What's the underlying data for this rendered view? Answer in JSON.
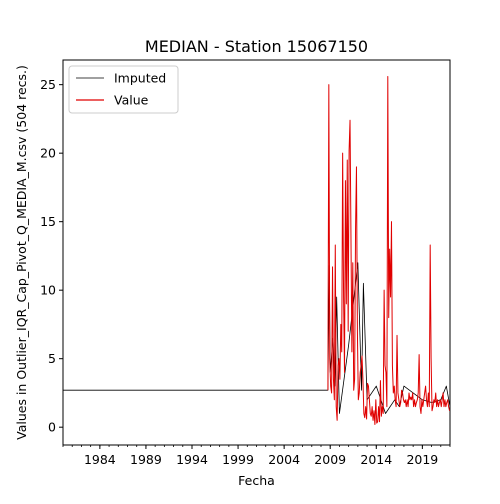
{
  "chart_data": {
    "type": "line",
    "title": "MEDIAN - Station 15067150",
    "xlabel": "Fecha",
    "ylabel": "Values in Outlier_IQR_Cap_Pivot_Q_MEDIA_M.csv (504 recs.)",
    "xlim": [
      1980.0,
      2022.0
    ],
    "ylim": [
      -1.3,
      26.8
    ],
    "x_ticks": [
      1984,
      1989,
      1994,
      1999,
      2004,
      2009,
      2014,
      2019
    ],
    "y_ticks": [
      0,
      5,
      10,
      15,
      20,
      25
    ],
    "grid": false,
    "legend_position": "upper-left",
    "series": [
      {
        "name": "Imputed",
        "color": "#000000",
        "x": [
          1980.0,
          1985.0,
          1990.0,
          1995.0,
          2000.0,
          2005.0,
          2008.5,
          2008.75,
          2008.9,
          2009.0,
          2009.3,
          2009.5,
          2009.7,
          2010.0,
          2011.0,
          2012.0,
          2012.4,
          2012.6,
          2013.0,
          2014.0,
          2015.0,
          2016.0,
          2016.5,
          2017.0,
          2018.0,
          2019.0,
          2020.0,
          2021.0,
          2021.6,
          2022.0
        ],
        "values": [
          2.7,
          2.7,
          2.7,
          2.7,
          2.7,
          2.7,
          2.7,
          2.7,
          11.8,
          4.0,
          6.5,
          3.0,
          9.5,
          1.0,
          6.0,
          12.0,
          2.7,
          10.5,
          2.0,
          3.0,
          1.0,
          2.0,
          1.5,
          3.0,
          2.5,
          2.0,
          1.8,
          2.0,
          3.0,
          1.5
        ]
      },
      {
        "name": "Value",
        "color": "#e00000",
        "x": [
          2008.75,
          2008.85,
          2008.95,
          2009.05,
          2009.15,
          2009.25,
          2009.35,
          2009.45,
          2009.55,
          2009.65,
          2009.75,
          2009.85,
          2009.95,
          2010.05,
          2010.15,
          2010.25,
          2010.35,
          2010.45,
          2010.55,
          2010.65,
          2010.75,
          2010.85,
          2010.95,
          2011.05,
          2011.15,
          2011.25,
          2011.35,
          2011.45,
          2011.55,
          2011.65,
          2011.75,
          2011.85,
          2011.95,
          2012.05,
          2012.15,
          2012.25,
          2012.35,
          2012.45,
          2012.55,
          2012.65,
          2012.75,
          2012.85,
          2012.95,
          2013.05,
          2013.15,
          2013.25,
          2013.35,
          2013.45,
          2013.55,
          2013.65,
          2013.75,
          2013.85,
          2013.95,
          2014.05,
          2014.15,
          2014.25,
          2014.35,
          2014.45,
          2014.55,
          2014.65,
          2014.75,
          2014.85,
          2014.95,
          2015.05,
          2015.15,
          2015.25,
          2015.35,
          2015.45,
          2015.55,
          2015.65,
          2015.75,
          2015.85,
          2015.95,
          2016.05,
          2016.15,
          2016.25,
          2016.35,
          2016.45,
          2016.55,
          2016.65,
          2016.75,
          2016.85,
          2016.95,
          2017.05,
          2017.15,
          2017.25,
          2017.35,
          2017.45,
          2017.55,
          2017.65,
          2017.75,
          2017.85,
          2017.95,
          2018.05,
          2018.15,
          2018.25,
          2018.35,
          2018.45,
          2018.55,
          2018.65,
          2018.75,
          2018.85,
          2018.95,
          2019.05,
          2019.15,
          2019.25,
          2019.35,
          2019.45,
          2019.55,
          2019.65,
          2019.75,
          2019.85,
          2019.95,
          2020.05,
          2020.15,
          2020.25,
          2020.35,
          2020.45,
          2020.55,
          2020.65,
          2020.75,
          2020.85,
          2020.95,
          2021.05,
          2021.15,
          2021.25,
          2021.35,
          2021.45,
          2021.55,
          2021.65,
          2021.75,
          2021.85,
          2021.95
        ],
        "values": [
          2.7,
          25.0,
          5.0,
          3.0,
          2.5,
          11.7,
          3.5,
          2.0,
          13.3,
          1.5,
          0.5,
          4.5,
          5.0,
          3.5,
          7.5,
          5.5,
          20.0,
          9.5,
          4.0,
          18.0,
          9.0,
          19.5,
          7.0,
          20.2,
          22.4,
          14.0,
          5.5,
          12.0,
          2.7,
          3.5,
          14.5,
          19.0,
          7.0,
          2.0,
          2.5,
          4.0,
          4.5,
          5.2,
          3.5,
          1.0,
          0.7,
          1.5,
          0.6,
          3.2,
          3.0,
          2.0,
          1.0,
          0.8,
          1.5,
          0.5,
          1.2,
          0.2,
          2.0,
          0.3,
          0.4,
          1.5,
          0.4,
          3.4,
          0.8,
          1.5,
          1.0,
          10.0,
          4.5,
          4.0,
          1.5,
          25.6,
          8.0,
          13.0,
          9.5,
          15.0,
          4.5,
          2.5,
          3.0,
          2.0,
          1.5,
          6.7,
          2.5,
          2.0,
          1.5,
          1.8,
          2.7,
          2.5,
          2.0,
          1.8,
          2.0,
          1.5,
          2.0,
          1.5,
          2.5,
          2.0,
          2.2,
          2.0,
          2.5,
          1.5,
          2.0,
          1.5,
          1.8,
          2.0,
          2.5,
          5.3,
          1.5,
          1.0,
          2.0,
          1.5,
          2.0,
          2.5,
          3.0,
          2.0,
          1.5,
          2.5,
          1.5,
          13.3,
          5.0,
          1.2,
          1.5,
          2.0,
          1.8,
          2.5,
          1.5,
          2.0,
          1.5,
          1.8,
          2.0,
          1.5,
          2.0,
          2.5,
          1.5,
          2.0,
          1.5,
          1.8,
          2.0,
          1.5,
          1.2
        ]
      }
    ]
  }
}
